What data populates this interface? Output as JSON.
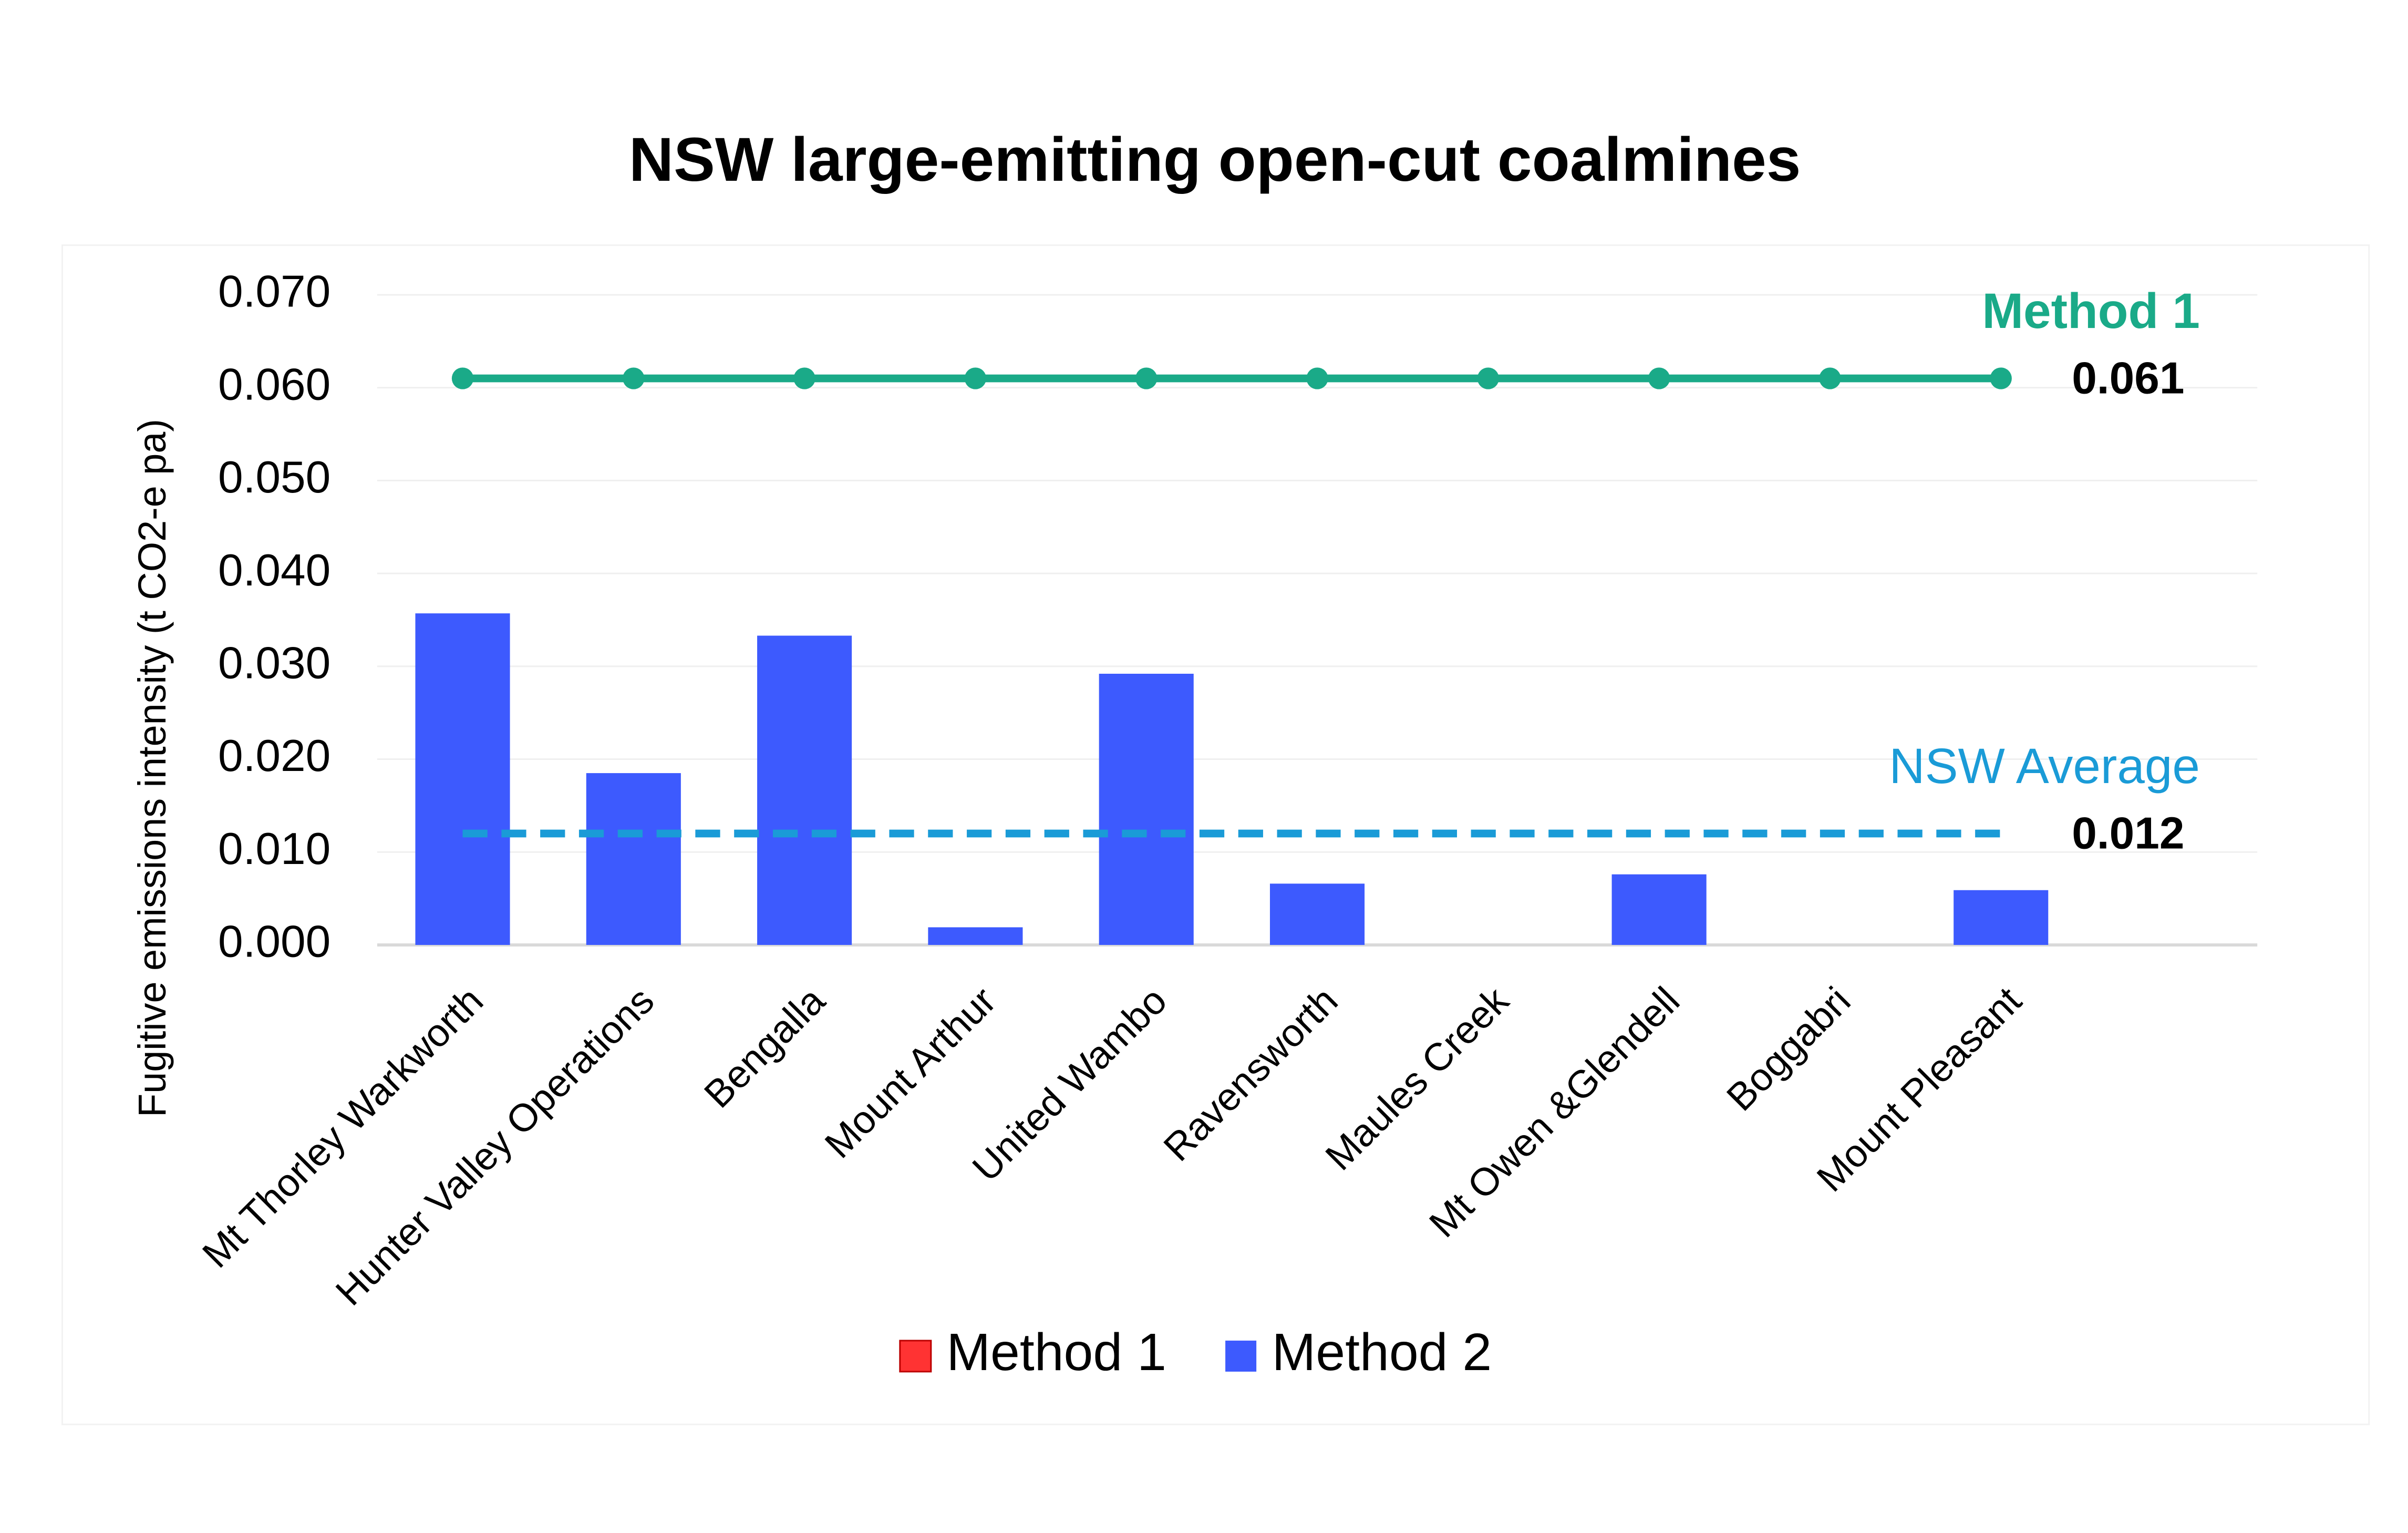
{
  "chart_data": {
    "type": "bar",
    "title": "NSW large-emitting open-cut coalmines",
    "y_label": "Fugitive emissions intensity (t CO2-e pa)",
    "categories": [
      "Mt Thorley Warkworth",
      "Hunter Valley Operations",
      "Bengalla",
      "Mount Arthur",
      "United Wambo",
      "Ravensworth",
      "Maules Creek",
      "Mt Owen &Glendell",
      "Boggabri",
      "Mount Pleasant"
    ],
    "series": [
      {
        "name": "Method 1",
        "color": "#ff3333",
        "values": [
          null,
          null,
          null,
          null,
          null,
          null,
          null,
          null,
          null,
          null
        ]
      },
      {
        "name": "Method 2",
        "color": "#3d5afe",
        "values": [
          0.0357,
          0.0185,
          0.0333,
          0.0019,
          0.0292,
          0.0066,
          0,
          0.0076,
          0,
          0.0059
        ]
      }
    ],
    "reference_lines": [
      {
        "label": "Method 1",
        "value": 0.061,
        "color": "#1aaa88",
        "style": "solid",
        "markers": true
      },
      {
        "label": "NSW Average",
        "value": 0.012,
        "color": "#1a9bd7",
        "style": "dashed",
        "markers": false
      }
    ],
    "ylim": [
      0,
      0.07
    ],
    "yticks": [
      {
        "value": 0,
        "label": "0.000"
      },
      {
        "value": 0.01,
        "label": "0.010"
      },
      {
        "value": 0.02,
        "label": "0.020"
      },
      {
        "value": 0.03,
        "label": "0.030"
      },
      {
        "value": 0.04,
        "label": "0.040"
      },
      {
        "value": 0.05,
        "label": "0.050"
      },
      {
        "value": 0.06,
        "label": "0.060"
      },
      {
        "value": 0.07,
        "label": "0.070"
      }
    ],
    "grid": true,
    "legend": "bottom"
  }
}
